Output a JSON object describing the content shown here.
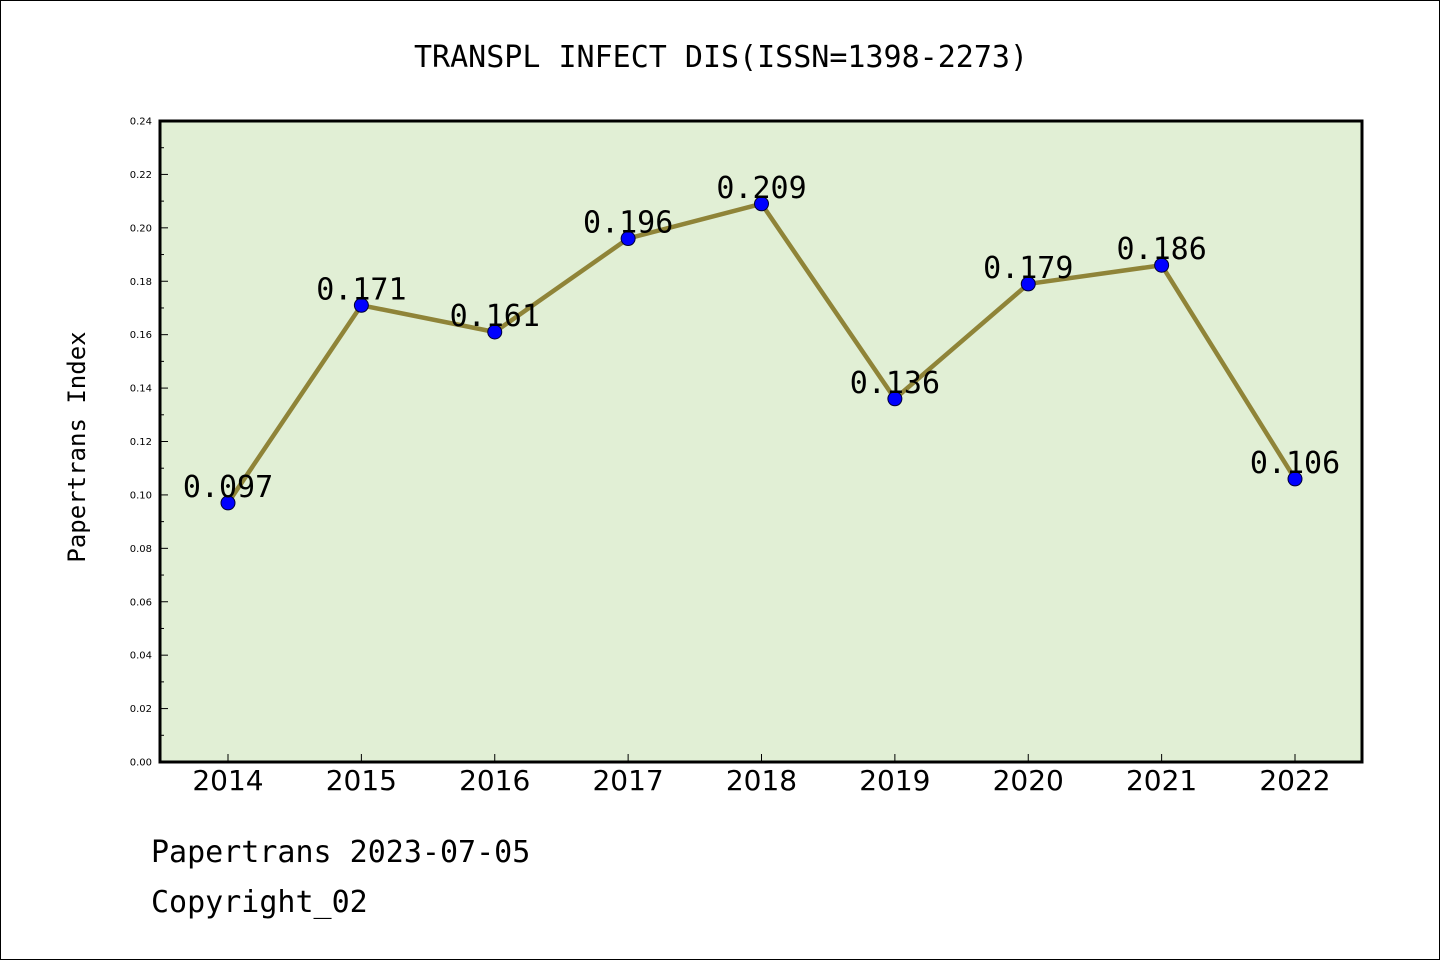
{
  "chart_data": {
    "type": "line",
    "title": "TRANSPL INFECT DIS(ISSN=1398-2273)",
    "xlabel": "",
    "ylabel": "Papertrans Index",
    "categories": [
      "2014",
      "2015",
      "2016",
      "2017",
      "2018",
      "2019",
      "2020",
      "2021",
      "2022"
    ],
    "series": [
      {
        "values": [
          0.097,
          0.171,
          0.161,
          0.196,
          0.209,
          0.136,
          0.179,
          0.186,
          0.106
        ],
        "labels": [
          "0.097",
          "0.171",
          "0.161",
          "0.196",
          "0.209",
          "0.136",
          "0.179",
          "0.186",
          "0.106"
        ]
      }
    ],
    "ylim": [
      0,
      0.24
    ],
    "yticks": [
      "0.00",
      "0.02",
      "0.04",
      "0.06",
      "0.08",
      "0.10",
      "0.12",
      "0.14",
      "0.16",
      "0.18",
      "0.20",
      "0.22",
      "0.24"
    ],
    "grid": false,
    "legend": "none",
    "colors": {
      "plot_background": "#e1efd5",
      "line": "#8f8438",
      "marker": "#0000ff"
    }
  },
  "footer": {
    "date_line": "Papertrans 2023-07-05",
    "copyright_line": "Copyright_02"
  }
}
